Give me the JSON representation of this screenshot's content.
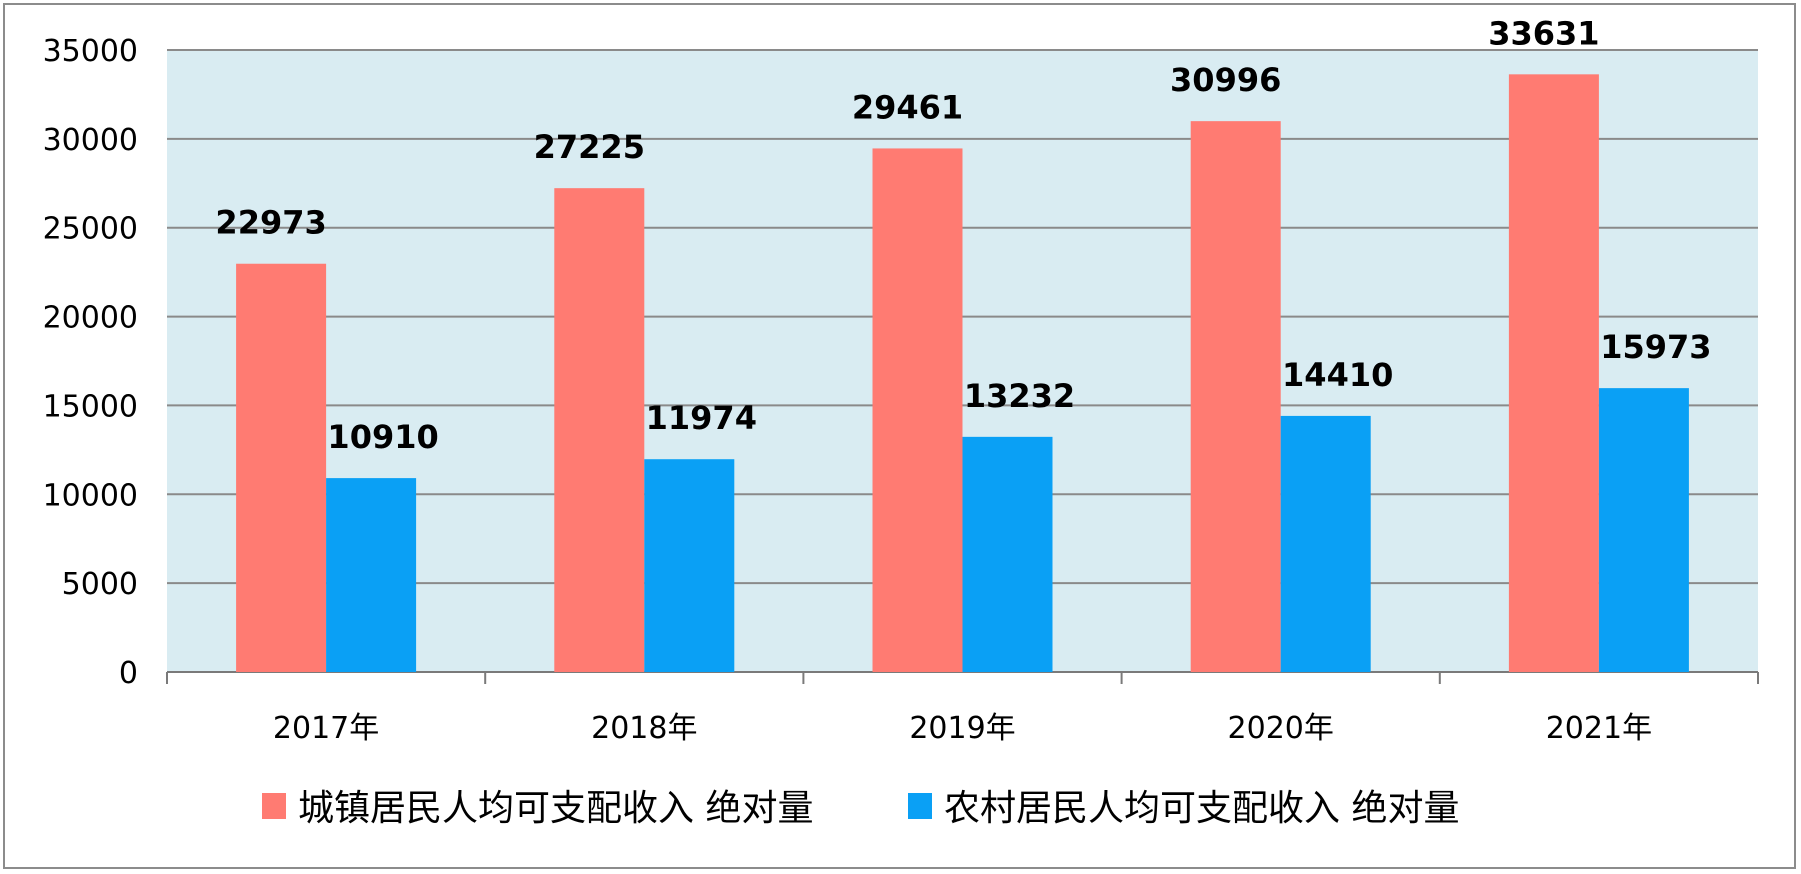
{
  "chart_data": {
    "type": "bar",
    "categories": [
      "2017年",
      "2018年",
      "2019年",
      "2020年",
      "2021年"
    ],
    "series": [
      {
        "name": "城镇居民人均可支配收入 绝对量",
        "values": [
          22973,
          27225,
          29461,
          30996,
          33631
        ],
        "color": "#ff7b72"
      },
      {
        "name": "农村居民人均可支配收入 绝对量",
        "values": [
          10910,
          11974,
          13232,
          14410,
          15973
        ],
        "color": "#0aa0f5"
      }
    ],
    "ylim": [
      0,
      35000
    ],
    "yticks": [
      0,
      5000,
      10000,
      15000,
      20000,
      25000,
      30000,
      35000
    ],
    "grid": true,
    "plot_background": "#d9ecf2",
    "legend_position": "bottom",
    "title": "",
    "xlabel": "",
    "ylabel": ""
  }
}
